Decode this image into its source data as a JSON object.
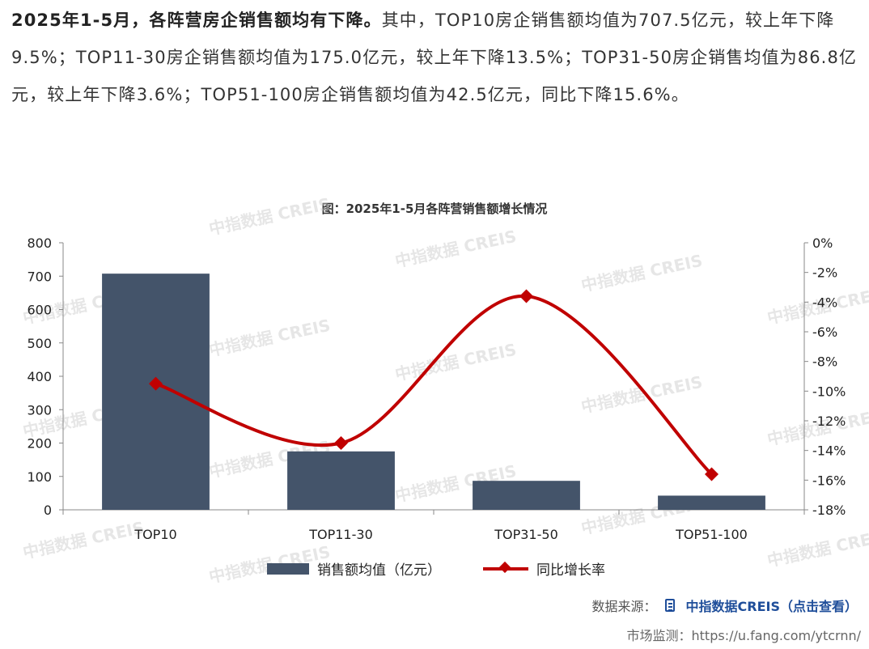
{
  "paragraph": {
    "bold": "2025年1-5月，各阵营房企销售额均有下降。",
    "rest": "其中，TOP10房企销售额均值为707.5亿元，较上年下降9.5%；TOP11-30房企销售额均值为175.0亿元，较上年下降13.5%；TOP31-50房企销售均值为86.8亿元，较上年下降3.6%；TOP51-100房企销售额均值为42.5亿元，同比下降15.6%。"
  },
  "chart_data": {
    "type": "bar",
    "title": "图：2025年1-5月各阵营销售额增长情况",
    "categories": [
      "TOP10",
      "TOP11-30",
      "TOP31-50",
      "TOP51-100"
    ],
    "series": [
      {
        "name": "销售额均值（亿元）",
        "type": "bar",
        "axis": "left",
        "color": "#44546a",
        "values": [
          707.5,
          175.0,
          86.8,
          42.5
        ]
      },
      {
        "name": "同比增长率",
        "type": "line",
        "axis": "right",
        "color": "#c00000",
        "marker": "diamond",
        "smooth": true,
        "values": [
          -9.5,
          -13.5,
          -3.6,
          -15.6
        ]
      }
    ],
    "ylim_left": [
      0,
      800
    ],
    "yticks_left": [
      "0",
      "100",
      "200",
      "300",
      "400",
      "500",
      "600",
      "700",
      "800"
    ],
    "ylim_right": [
      -18,
      0
    ],
    "yticks_right": [
      "0%",
      "-2%",
      "-4%",
      "-6%",
      "-8%",
      "-10%",
      "-12%",
      "-14%",
      "-16%",
      "-18%"
    ],
    "grid": false,
    "legend_position": "bottom"
  },
  "watermark": "中指数据 CREIS",
  "source": {
    "label": "数据来源：",
    "link": "中指数据CREIS（点击查看）"
  },
  "monitor": "市场监测：https://u.fang.com/ytcrnn/"
}
